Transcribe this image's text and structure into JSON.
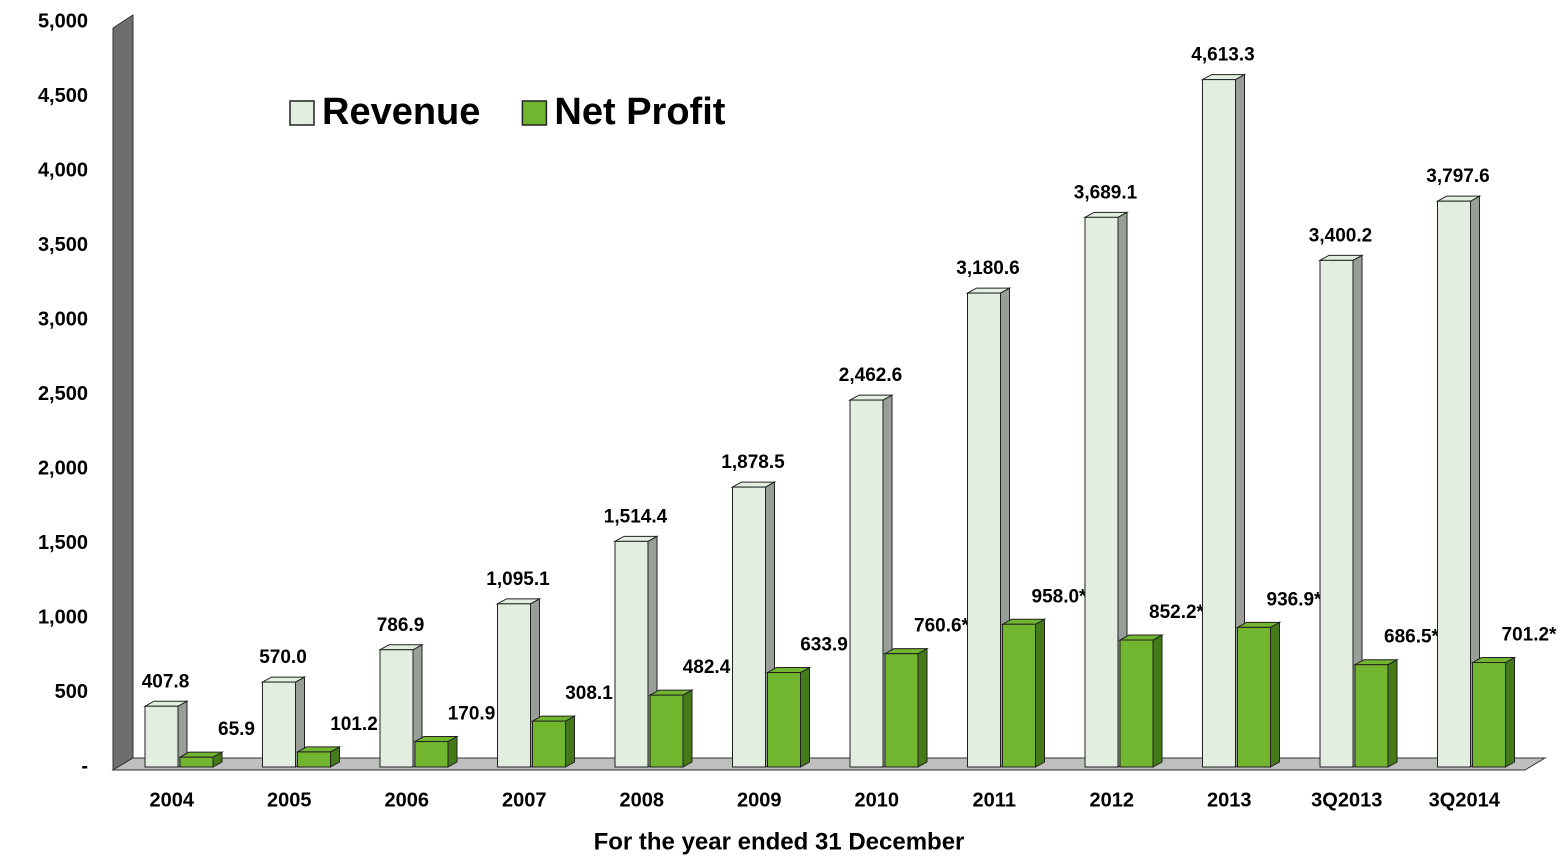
{
  "chart_data": {
    "type": "bar",
    "x_label": "For the year ended 31 December",
    "categories": [
      "2004",
      "2005",
      "2006",
      "2007",
      "2008",
      "2009",
      "2010",
      "2011",
      "2012",
      "2013",
      "3Q2013",
      "3Q2014"
    ],
    "series": [
      {
        "name": "Revenue",
        "color": "#e2efe0",
        "values": [
          407.8,
          570.0,
          786.9,
          1095.1,
          1514.4,
          1878.5,
          2462.6,
          3180.6,
          3689.1,
          4613.3,
          3400.2,
          3797.6
        ],
        "value_labels": [
          "407.8",
          "570.0",
          "786.9",
          "1,095.1",
          "1,514.4",
          "1,878.5",
          "2,462.6",
          "3,180.6",
          "3,689.1",
          "4,613.3",
          "3,400.2",
          "3,797.6"
        ]
      },
      {
        "name": "Net Profit",
        "color": "#72b52e",
        "values": [
          65.9,
          101.2,
          170.9,
          308.1,
          482.4,
          633.9,
          760.6,
          958.0,
          852.2,
          936.9,
          686.5,
          701.2
        ],
        "value_labels": [
          "65.9",
          "101.2",
          "170.9",
          "308.1",
          "482.4",
          "633.9",
          "760.6*",
          "958.0*",
          "852.2*",
          "936.9*",
          "686.5*",
          "701.2*"
        ]
      }
    ],
    "ylim": [
      0,
      5000
    ],
    "yticks": [
      {
        "value": 0,
        "label": "-"
      },
      500,
      {
        "value": 1000,
        "label": "1,000"
      },
      {
        "value": 1500,
        "label": "1,500"
      },
      {
        "value": 2000,
        "label": "2,000"
      },
      {
        "value": 2500,
        "label": "2,500"
      },
      {
        "value": 3000,
        "label": "3,000"
      },
      {
        "value": 3500,
        "label": "3,500"
      },
      {
        "value": 4000,
        "label": "4,000"
      },
      {
        "value": 4500,
        "label": "4,500"
      },
      {
        "value": 5000,
        "label": "5,000"
      }
    ],
    "grid": false,
    "legend": "top-left"
  }
}
